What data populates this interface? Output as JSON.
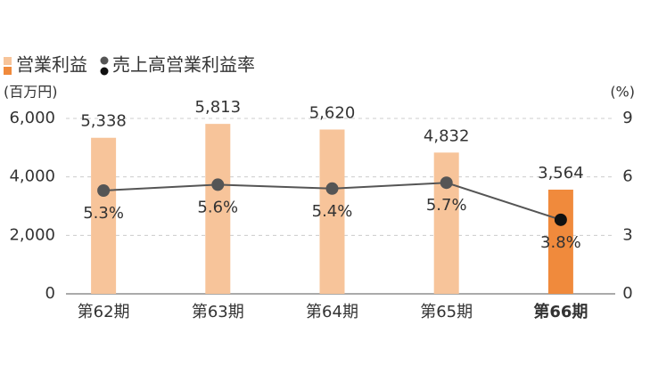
{
  "chart_data": {
    "type": "combo",
    "y_label": "(百万円)",
    "y2_label": "(%)",
    "categories": [
      "第62期",
      "第63期",
      "第64期",
      "第65期",
      "第66期"
    ],
    "series": [
      {
        "name": "営業利益",
        "type": "bar",
        "colors": [
          "#f7c49a",
          "#f7c49a",
          "#f7c49a",
          "#f7c49a",
          "#f08a3c"
        ],
        "values": [
          5338,
          5813,
          5620,
          4832,
          3564
        ],
        "value_labels": [
          "5,338",
          "5,813",
          "5,620",
          "4,832",
          "3,564"
        ]
      },
      {
        "name": "売上高営業利益率",
        "type": "line",
        "axis": "y2",
        "color": "#555555",
        "colors": [
          "#555555",
          "#555555",
          "#555555",
          "#555555",
          "#111111"
        ],
        "values": [
          5.3,
          5.6,
          5.4,
          5.7,
          3.8
        ],
        "value_labels": [
          "5.3%",
          "5.6%",
          "5.4%",
          "5.7%",
          "3.8%"
        ]
      }
    ],
    "ylim": [
      0,
      6000
    ],
    "yticks": [
      0,
      {
        "value": 2000,
        "label": "2,000"
      },
      {
        "value": 4000,
        "label": "4,000"
      },
      {
        "value": 6000,
        "label": "6,000"
      }
    ],
    "y2lim": [
      0,
      9
    ],
    "y2ticks": [
      0,
      3,
      6,
      9
    ],
    "grid": true
  }
}
